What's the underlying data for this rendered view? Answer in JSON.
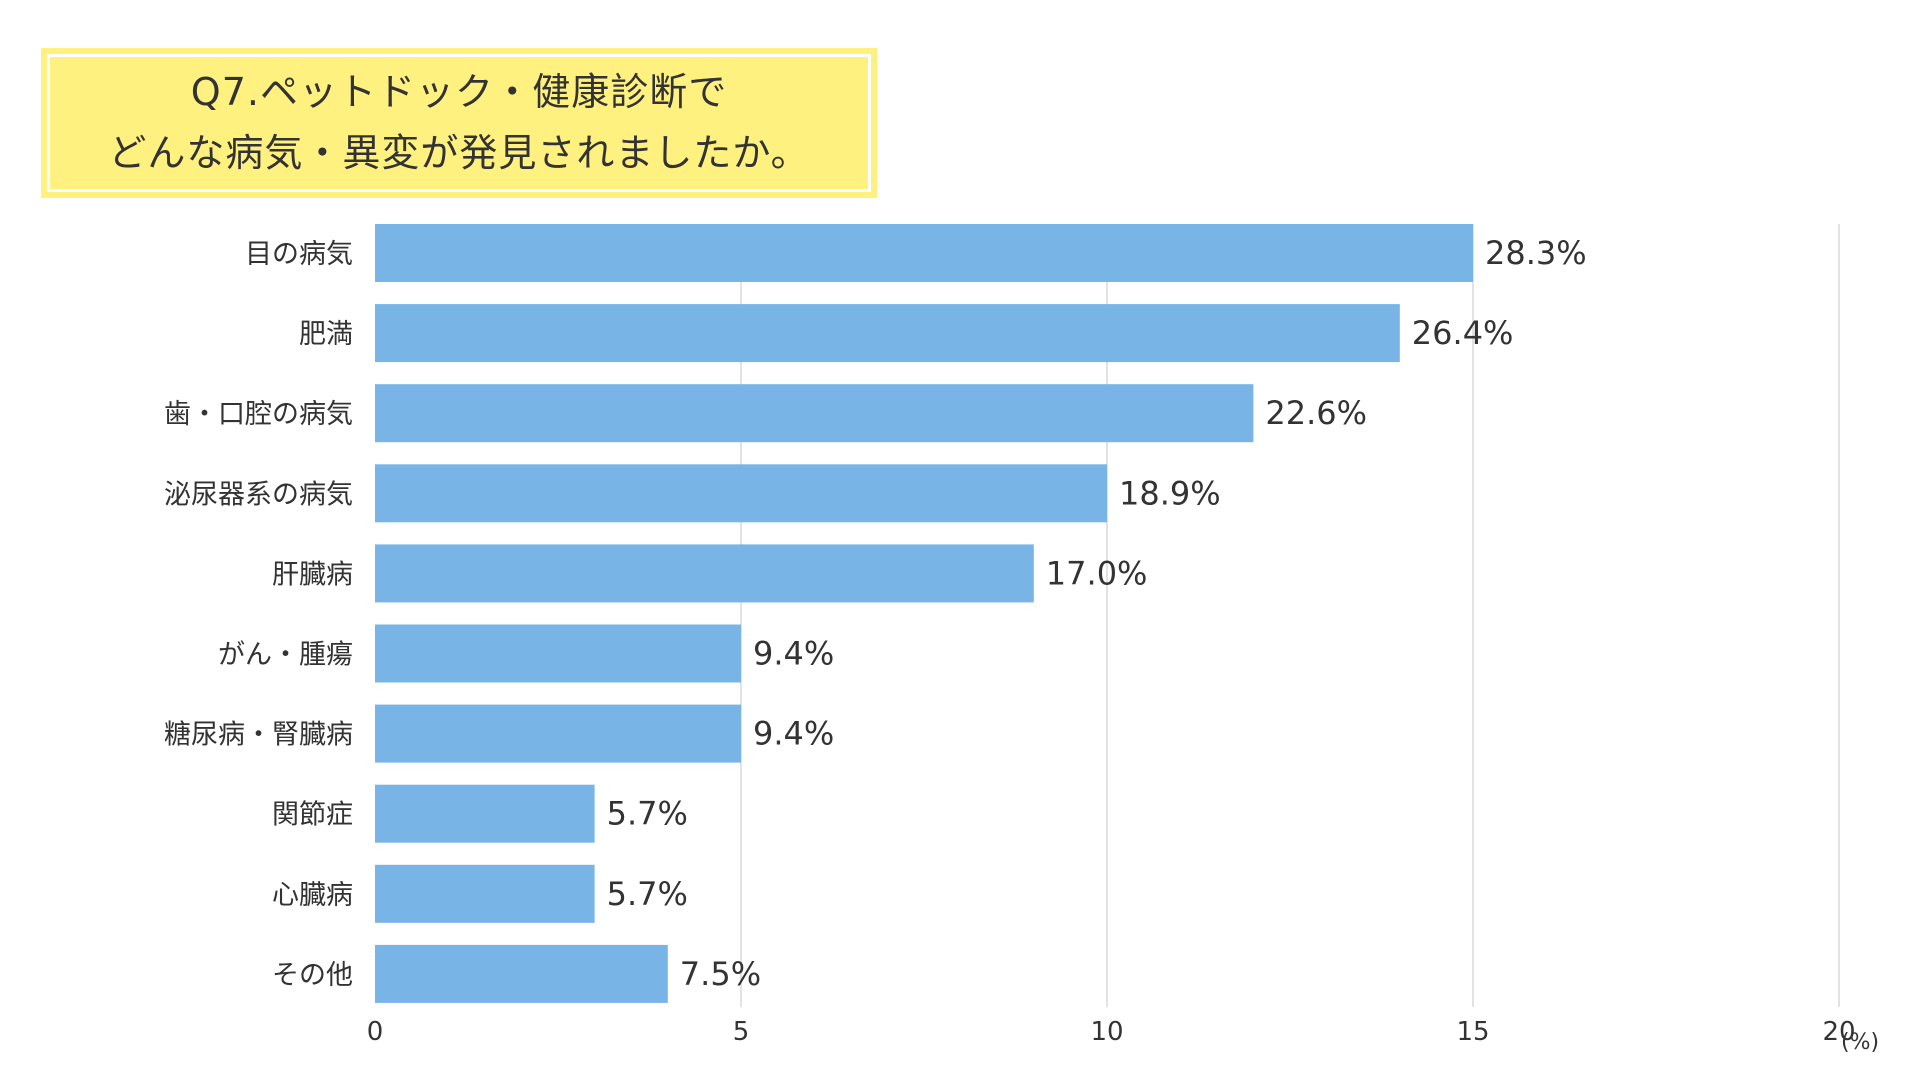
{
  "chart_data": {
    "type": "bar",
    "orientation": "horizontal",
    "title_lines": [
      "Q7.ペットドック・健康診断で",
      "どんな病気・異変が発見されましたか。"
    ],
    "categories": [
      "目の病気",
      "肥満",
      "歯・口腔の病気",
      "泌尿器系の病気",
      "肝臓病",
      "がん・腫瘍",
      "糖尿病・腎臓病",
      "関節症",
      "心臓病",
      "その他"
    ],
    "values": [
      15,
      14,
      12,
      10,
      9,
      5,
      5,
      3,
      3,
      4
    ],
    "value_labels": [
      "28.3%",
      "26.4%",
      "22.6%",
      "18.9%",
      "17.0%",
      "9.4%",
      "9.4%",
      "5.7%",
      "5.7%",
      "7.5%"
    ],
    "xlim": [
      0,
      20
    ],
    "ticks": [
      0,
      5,
      10,
      15,
      20
    ],
    "tick_labels": [
      "0",
      "5",
      "10",
      "15",
      "20"
    ],
    "unit_label": "(%)",
    "grid": true,
    "bar_color": "#78b4e5",
    "title_bg_color": "#fff17f"
  }
}
